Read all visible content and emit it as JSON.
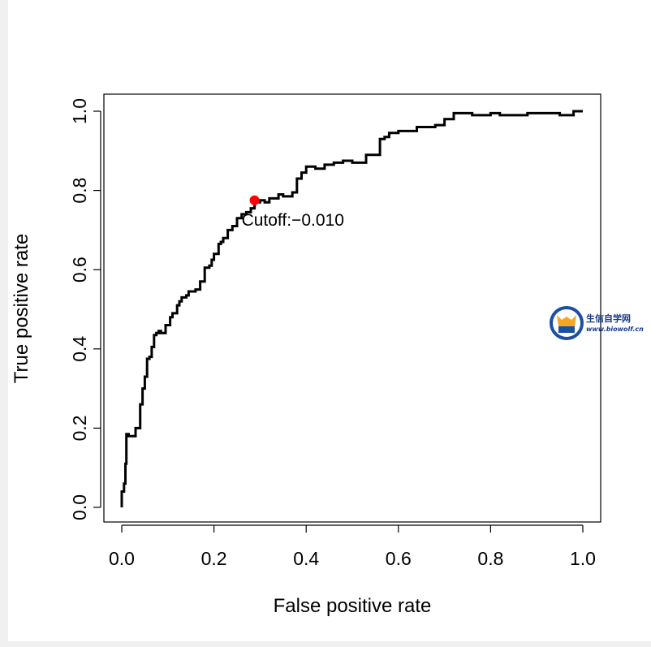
{
  "chart_data": {
    "type": "line",
    "xlabel": "False positive rate",
    "ylabel": "True positive rate",
    "xlim": [
      0,
      1
    ],
    "ylim": [
      0,
      1
    ],
    "xticks": [
      "0.0",
      "0.2",
      "0.4",
      "0.6",
      "0.8",
      "1.0"
    ],
    "yticks": [
      "0.0",
      "0.2",
      "0.4",
      "0.6",
      "0.8",
      "1.0"
    ],
    "grid": false,
    "line_color": "#000000",
    "marker_color": "#ff0000",
    "cutoff_point": {
      "x": 0.288,
      "y": 0.775,
      "label": "Cutoff:−0.010"
    },
    "series": [
      {
        "x": [
          0.0,
          0.0,
          0.005,
          0.005,
          0.008,
          0.008,
          0.01,
          0.01,
          0.015,
          0.015,
          0.03,
          0.03,
          0.04,
          0.04,
          0.045,
          0.045,
          0.05,
          0.05,
          0.055,
          0.055,
          0.06,
          0.06,
          0.065,
          0.065,
          0.07,
          0.07,
          0.075,
          0.075,
          0.08,
          0.08,
          0.085,
          0.085,
          0.095,
          0.095,
          0.105,
          0.105,
          0.11,
          0.11,
          0.12,
          0.12,
          0.125,
          0.125,
          0.13,
          0.13,
          0.14,
          0.14,
          0.145,
          0.145,
          0.16,
          0.16,
          0.17,
          0.17,
          0.18,
          0.18,
          0.19,
          0.19,
          0.195,
          0.195,
          0.2,
          0.2,
          0.21,
          0.21,
          0.215,
          0.215,
          0.22,
          0.22,
          0.23,
          0.23,
          0.24,
          0.24,
          0.25,
          0.25,
          0.26,
          0.26,
          0.27,
          0.27,
          0.28,
          0.28,
          0.288,
          0.288,
          0.3,
          0.3,
          0.31,
          0.31,
          0.32,
          0.32,
          0.34,
          0.34,
          0.35,
          0.35,
          0.37,
          0.37,
          0.38,
          0.38,
          0.39,
          0.39,
          0.4,
          0.4,
          0.42,
          0.42,
          0.44,
          0.44,
          0.46,
          0.46,
          0.48,
          0.48,
          0.5,
          0.5,
          0.53,
          0.53,
          0.56,
          0.56,
          0.57,
          0.57,
          0.58,
          0.58,
          0.6,
          0.6,
          0.64,
          0.64,
          0.68,
          0.68,
          0.7,
          0.7,
          0.72,
          0.72,
          0.76,
          0.76,
          0.8,
          0.8,
          0.82,
          0.82,
          0.88,
          0.88,
          0.95,
          0.95,
          0.98,
          0.98,
          1.0
        ],
        "y": [
          0.0,
          0.04,
          0.04,
          0.06,
          0.06,
          0.11,
          0.11,
          0.185,
          0.185,
          0.18,
          0.18,
          0.2,
          0.2,
          0.26,
          0.26,
          0.3,
          0.3,
          0.33,
          0.33,
          0.375,
          0.375,
          0.38,
          0.38,
          0.405,
          0.405,
          0.435,
          0.435,
          0.44,
          0.44,
          0.445,
          0.445,
          0.44,
          0.44,
          0.46,
          0.46,
          0.48,
          0.48,
          0.49,
          0.49,
          0.51,
          0.51,
          0.52,
          0.52,
          0.53,
          0.53,
          0.535,
          0.535,
          0.545,
          0.545,
          0.55,
          0.55,
          0.57,
          0.57,
          0.605,
          0.605,
          0.61,
          0.61,
          0.625,
          0.625,
          0.64,
          0.64,
          0.665,
          0.665,
          0.67,
          0.67,
          0.68,
          0.68,
          0.7,
          0.7,
          0.71,
          0.71,
          0.73,
          0.73,
          0.74,
          0.74,
          0.745,
          0.745,
          0.755,
          0.755,
          0.77,
          0.77,
          0.775,
          0.775,
          0.77,
          0.77,
          0.78,
          0.78,
          0.79,
          0.79,
          0.785,
          0.785,
          0.795,
          0.795,
          0.83,
          0.83,
          0.845,
          0.845,
          0.86,
          0.86,
          0.855,
          0.855,
          0.865,
          0.865,
          0.87,
          0.87,
          0.875,
          0.875,
          0.87,
          0.87,
          0.89,
          0.89,
          0.93,
          0.93,
          0.935,
          0.935,
          0.945,
          0.945,
          0.95,
          0.95,
          0.96,
          0.96,
          0.965,
          0.965,
          0.98,
          0.98,
          0.995,
          0.995,
          0.99,
          0.99,
          0.995,
          0.995,
          0.99,
          0.99,
          0.995,
          0.995,
          0.99,
          0.99,
          1.0,
          1.0
        ]
      }
    ]
  },
  "watermark": {
    "title": "生信自学网",
    "url": "www.biowolf.cn",
    "colors": {
      "text": "#1b3a8c",
      "ring": "#1b4fa3",
      "face": "#f5a623"
    }
  }
}
